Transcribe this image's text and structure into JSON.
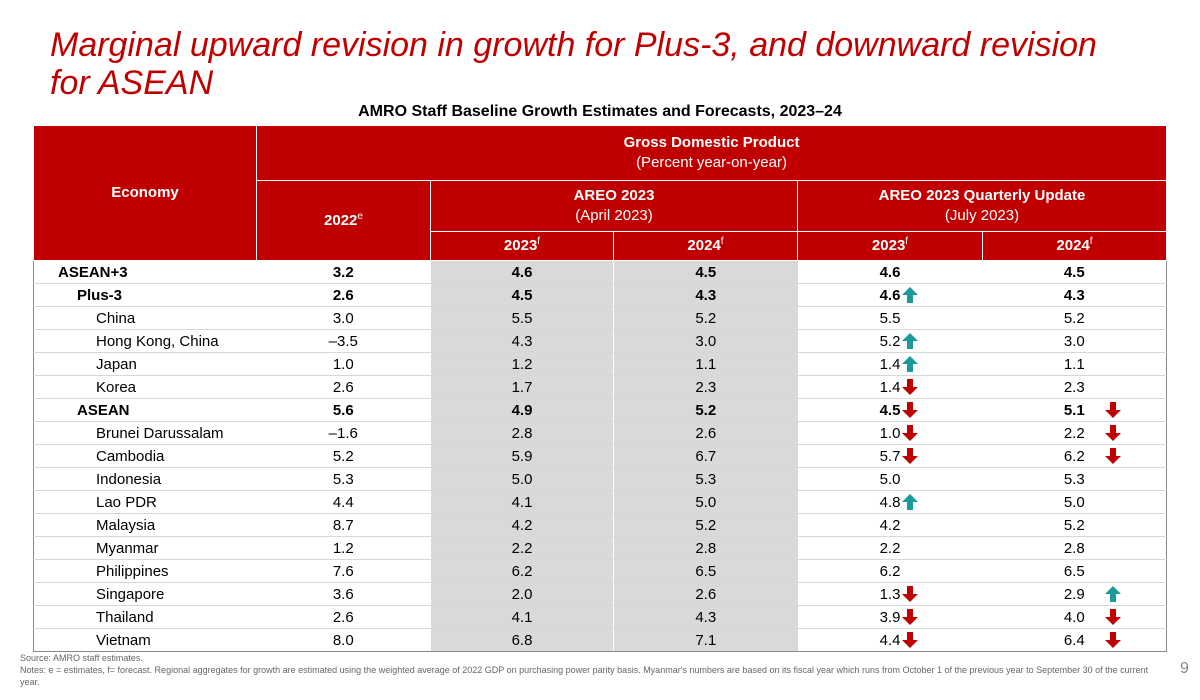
{
  "title": "Marginal upward revision in growth for Plus-3, and downward revision for ASEAN",
  "table_title": "AMRO Staff Baseline Growth Estimates and Forecasts, 2023–24",
  "header": {
    "economy": "Economy",
    "gdp": "Gross Domestic Product",
    "gdp_sub": "(Percent year-on-year)",
    "y2022": "2022",
    "y2022_sup": "e",
    "areo": "AREO 2023",
    "areo_sub": "(April 2023)",
    "update": "AREO 2023 Quarterly Update",
    "update_sub": "(July 2023)",
    "f2023": "2023",
    "f2024": "2024",
    "f_sup": "f"
  },
  "colors": {
    "brand_red": "#c00000",
    "up_arrow": "#1a9a9a",
    "down_arrow": "#c00000"
  },
  "rows": [
    {
      "name": "ASEAN+3",
      "level": 0,
      "bold": true,
      "topline": true,
      "values": [
        "3.2",
        "4.6",
        "4.5",
        "4.6",
        "4.5"
      ],
      "a23": "",
      "a24": ""
    },
    {
      "name": "Plus-3",
      "level": 1,
      "bold": true,
      "topline": true,
      "values": [
        "2.6",
        "4.5",
        "4.3",
        "4.6",
        "4.3"
      ],
      "a23": "up",
      "a24": ""
    },
    {
      "name": "China",
      "level": 2,
      "bold": false,
      "topline": false,
      "values": [
        "3.0",
        "5.5",
        "5.2",
        "5.5",
        "5.2"
      ],
      "a23": "",
      "a24": ""
    },
    {
      "name": "Hong Kong, China",
      "level": 2,
      "bold": false,
      "topline": false,
      "values": [
        "–3.5",
        "4.3",
        "3.0",
        "5.2",
        "3.0"
      ],
      "a23": "up",
      "a24": ""
    },
    {
      "name": "Japan",
      "level": 2,
      "bold": false,
      "topline": false,
      "values": [
        "1.0",
        "1.2",
        "1.1",
        "1.4",
        "1.1"
      ],
      "a23": "up",
      "a24": ""
    },
    {
      "name": "Korea",
      "level": 2,
      "bold": false,
      "topline": false,
      "values": [
        "2.6",
        "1.7",
        "2.3",
        "1.4",
        "2.3"
      ],
      "a23": "down",
      "a24": ""
    },
    {
      "name": "ASEAN",
      "level": 1,
      "bold": true,
      "topline": true,
      "values": [
        "5.6",
        "4.9",
        "5.2",
        "4.5",
        "5.1"
      ],
      "a23": "down",
      "a24": "down"
    },
    {
      "name": "Brunei Darussalam",
      "level": 2,
      "bold": false,
      "topline": false,
      "values": [
        "–1.6",
        "2.8",
        "2.6",
        "1.0",
        "2.2"
      ],
      "a23": "down",
      "a24": "down"
    },
    {
      "name": "Cambodia",
      "level": 2,
      "bold": false,
      "topline": false,
      "values": [
        "5.2",
        "5.9",
        "6.7",
        "5.7",
        "6.2"
      ],
      "a23": "down",
      "a24": "down"
    },
    {
      "name": "Indonesia",
      "level": 2,
      "bold": false,
      "topline": false,
      "values": [
        "5.3",
        "5.0",
        "5.3",
        "5.0",
        "5.3"
      ],
      "a23": "",
      "a24": ""
    },
    {
      "name": "Lao PDR",
      "level": 2,
      "bold": false,
      "topline": false,
      "values": [
        "4.4",
        "4.1",
        "5.0",
        "4.8",
        "5.0"
      ],
      "a23": "up",
      "a24": ""
    },
    {
      "name": "Malaysia",
      "level": 2,
      "bold": false,
      "topline": false,
      "values": [
        "8.7",
        "4.2",
        "5.2",
        "4.2",
        "5.2"
      ],
      "a23": "",
      "a24": ""
    },
    {
      "name": "Myanmar",
      "level": 2,
      "bold": false,
      "topline": false,
      "values": [
        "1.2",
        "2.2",
        "2.8",
        "2.2",
        "2.8"
      ],
      "a23": "",
      "a24": ""
    },
    {
      "name": "Philippines",
      "level": 2,
      "bold": false,
      "topline": false,
      "values": [
        "7.6",
        "6.2",
        "6.5",
        "6.2",
        "6.5"
      ],
      "a23": "",
      "a24": ""
    },
    {
      "name": "Singapore",
      "level": 2,
      "bold": false,
      "topline": false,
      "values": [
        "3.6",
        "2.0",
        "2.6",
        "1.3",
        "2.9"
      ],
      "a23": "down",
      "a24": "up"
    },
    {
      "name": "Thailand",
      "level": 2,
      "bold": false,
      "topline": false,
      "values": [
        "2.6",
        "4.1",
        "4.3",
        "3.9",
        "4.0"
      ],
      "a23": "down",
      "a24": "down"
    },
    {
      "name": "Vietnam",
      "level": 2,
      "bold": false,
      "topline": false,
      "values": [
        "8.0",
        "6.8",
        "7.1",
        "4.4",
        "6.4"
      ],
      "a23": "down",
      "a24": "down"
    }
  ],
  "source": "Source: AMRO staff estimates.",
  "notes": "Notes: e = estimates, f= forecast. Regional aggregates for growth are estimated using the weighted average of 2022 GDP on purchasing power parity basis. Myanmar's numbers are based on its fiscal year which runs from October 1 of the previous year to September 30 of the current year.",
  "page_number": "9"
}
